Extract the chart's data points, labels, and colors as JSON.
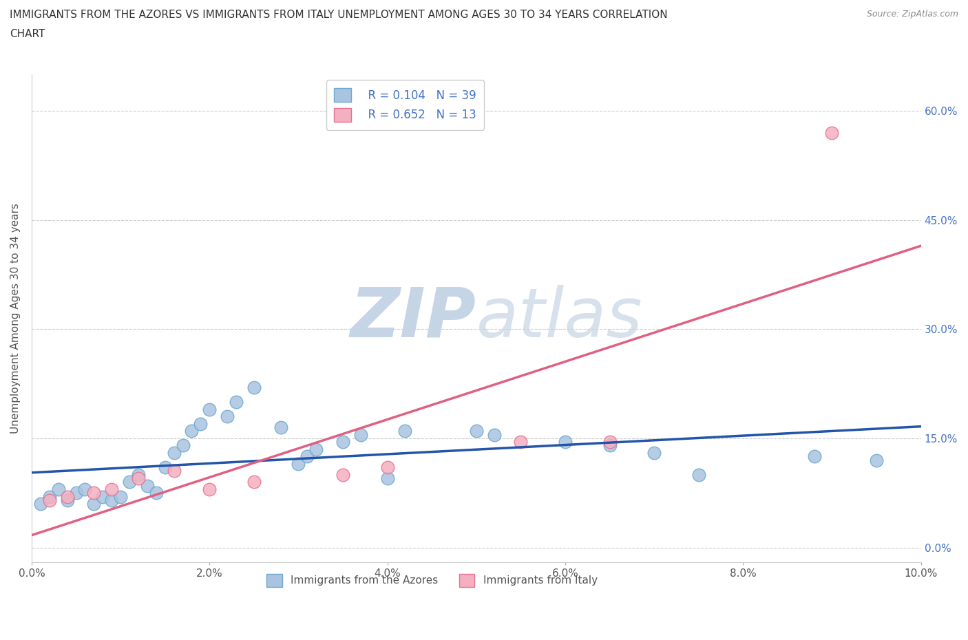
{
  "title_line1": "IMMIGRANTS FROM THE AZORES VS IMMIGRANTS FROM ITALY UNEMPLOYMENT AMONG AGES 30 TO 34 YEARS CORRELATION",
  "title_line2": "CHART",
  "source": "Source: ZipAtlas.com",
  "ylabel": "Unemployment Among Ages 30 to 34 years",
  "xlim": [
    0.0,
    0.1
  ],
  "ylim": [
    -0.02,
    0.65
  ],
  "yticks": [
    0.0,
    0.15,
    0.3,
    0.45,
    0.6
  ],
  "ytick_labels": [
    "0.0%",
    "15.0%",
    "30.0%",
    "45.0%",
    "60.0%"
  ],
  "xticks": [
    0.0,
    0.02,
    0.04,
    0.06,
    0.08,
    0.1
  ],
  "xtick_labels": [
    "0.0%",
    "2.0%",
    "4.0%",
    "6.0%",
    "8.0%",
    "10.0%"
  ],
  "azores_R": 0.104,
  "azores_N": 39,
  "italy_R": 0.652,
  "italy_N": 13,
  "azores_color": "#a8c4e0",
  "azores_edge_color": "#6ea8d0",
  "italy_color": "#f4b0c0",
  "italy_edge_color": "#e87090",
  "azores_line_color": "#2255aa",
  "italy_line_color": "#e06080",
  "watermark_zip_color": "#c5d5e5",
  "watermark_atlas_color": "#c5d5e5",
  "legend_color": "#4472c4",
  "azores_x": [
    0.001,
    0.002,
    0.003,
    0.004,
    0.005,
    0.006,
    0.007,
    0.008,
    0.009,
    0.01,
    0.011,
    0.012,
    0.013,
    0.014,
    0.015,
    0.016,
    0.017,
    0.018,
    0.019,
    0.02,
    0.022,
    0.023,
    0.025,
    0.028,
    0.03,
    0.031,
    0.032,
    0.035,
    0.037,
    0.04,
    0.042,
    0.05,
    0.052,
    0.06,
    0.065,
    0.07,
    0.075,
    0.088,
    0.095
  ],
  "azores_y": [
    0.06,
    0.07,
    0.08,
    0.065,
    0.075,
    0.08,
    0.06,
    0.07,
    0.065,
    0.07,
    0.09,
    0.1,
    0.085,
    0.075,
    0.11,
    0.13,
    0.14,
    0.16,
    0.17,
    0.19,
    0.18,
    0.2,
    0.22,
    0.165,
    0.115,
    0.125,
    0.135,
    0.145,
    0.155,
    0.095,
    0.16,
    0.16,
    0.155,
    0.145,
    0.14,
    0.13,
    0.1,
    0.125,
    0.12
  ],
  "italy_x": [
    0.002,
    0.004,
    0.007,
    0.009,
    0.012,
    0.016,
    0.02,
    0.025,
    0.035,
    0.04,
    0.055,
    0.065,
    0.09
  ],
  "italy_y": [
    0.065,
    0.07,
    0.075,
    0.08,
    0.095,
    0.105,
    0.08,
    0.09,
    0.1,
    0.11,
    0.145,
    0.145,
    0.57
  ]
}
